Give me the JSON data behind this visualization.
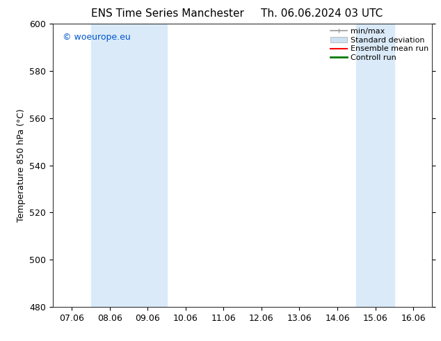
{
  "title_left": "ENS Time Series Manchester",
  "title_right": "Th. 06.06.2024 03 UTC",
  "ylabel": "Temperature 850 hPa (°C)",
  "ylim": [
    480,
    600
  ],
  "yticks": [
    480,
    500,
    520,
    540,
    560,
    580,
    600
  ],
  "xtick_labels": [
    "07.06",
    "08.06",
    "09.06",
    "10.06",
    "11.06",
    "12.06",
    "13.06",
    "14.06",
    "15.06",
    "16.06"
  ],
  "xlim_start": 0,
  "xlim_end": 9,
  "watermark": "© woeurope.eu",
  "watermark_color": "#0055cc",
  "background_color": "#ffffff",
  "plot_bg_color": "#ffffff",
  "shaded_bands": [
    {
      "x_start": 1.0,
      "x_end": 3.0,
      "color": "#daeaf8"
    },
    {
      "x_start": 8.0,
      "x_end": 9.0,
      "color": "#daeaf8"
    }
  ],
  "legend_items": [
    {
      "label": "min/max",
      "color": "#999999",
      "lw": 1.2,
      "style": "line_with_caps"
    },
    {
      "label": "Standard deviation",
      "color": "#cce0f0",
      "lw": 8,
      "style": "band"
    },
    {
      "label": "Ensemble mean run",
      "color": "#ff0000",
      "lw": 1.5,
      "style": "line"
    },
    {
      "label": "Controll run",
      "color": "#007700",
      "lw": 2,
      "style": "line"
    }
  ],
  "title_fontsize": 11,
  "label_fontsize": 9,
  "tick_fontsize": 9,
  "legend_fontsize": 8,
  "watermark_fontsize": 9
}
